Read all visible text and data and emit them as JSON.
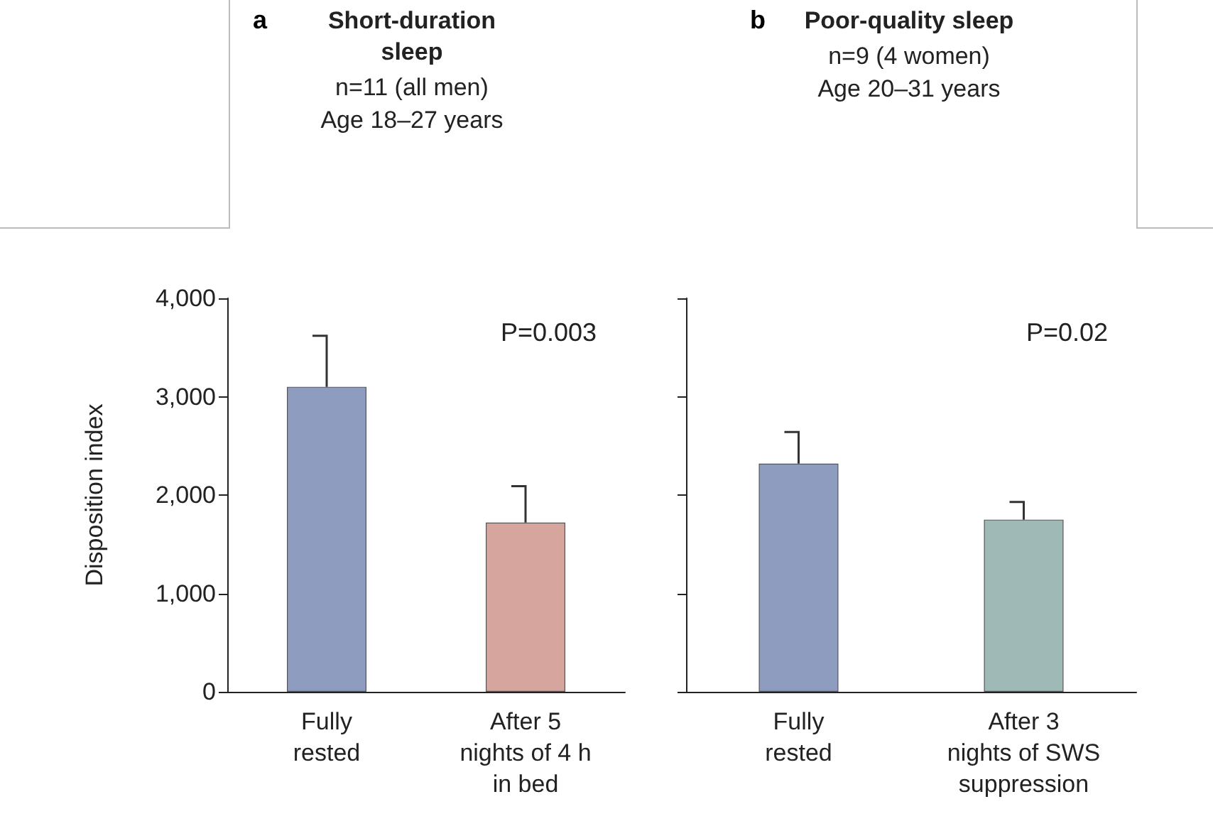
{
  "chart_data": [
    {
      "type": "bar",
      "title": "Short-duration sleep",
      "subtitle": "n=11 (all men)\nAge 18–27 years",
      "ylabel": "Disposition index",
      "annotations": [
        "a",
        "P=0.003"
      ],
      "categories": [
        "Fully\nrested",
        "After 5\nnights of 4 h\nin bed"
      ],
      "values": [
        3100,
        1720
      ],
      "colors": [
        "#8e9cc0",
        "#d6a69e"
      ],
      "errors": [
        [
          3100,
          3620
        ],
        [
          1720,
          2090
        ]
      ],
      "ylim": [
        0,
        4000
      ],
      "yticks": [
        {
          "value": 0,
          "label": "0"
        },
        {
          "value": 1000,
          "label": "1,000"
        },
        {
          "value": 2000,
          "label": "2,000"
        },
        {
          "value": 3000,
          "label": "3,000"
        },
        {
          "value": 4000,
          "label": "4,000"
        }
      ],
      "grid": false
    },
    {
      "type": "bar",
      "title": "Poor-quality sleep",
      "subtitle": "n=9 (4 women)\nAge 20–31 years",
      "annotations": [
        "b",
        "P=0.02"
      ],
      "categories": [
        "Fully\nrested",
        "After 3\nnights of SWS\nsuppression"
      ],
      "values": [
        2320,
        1750
      ],
      "colors": [
        "#8e9cc0",
        "#9fb9b7"
      ],
      "errors": [
        [
          2320,
          2640
        ],
        [
          1750,
          1930
        ]
      ],
      "ylim": [
        0,
        4000
      ],
      "yticks": [
        {
          "value": 0,
          "label": null
        },
        {
          "value": 1000,
          "label": null
        },
        {
          "value": 2000,
          "label": null
        },
        {
          "value": 3000,
          "label": null
        },
        {
          "value": 4000,
          "label": null
        }
      ],
      "grid": false,
      "tick_labels": "x"
    }
  ]
}
